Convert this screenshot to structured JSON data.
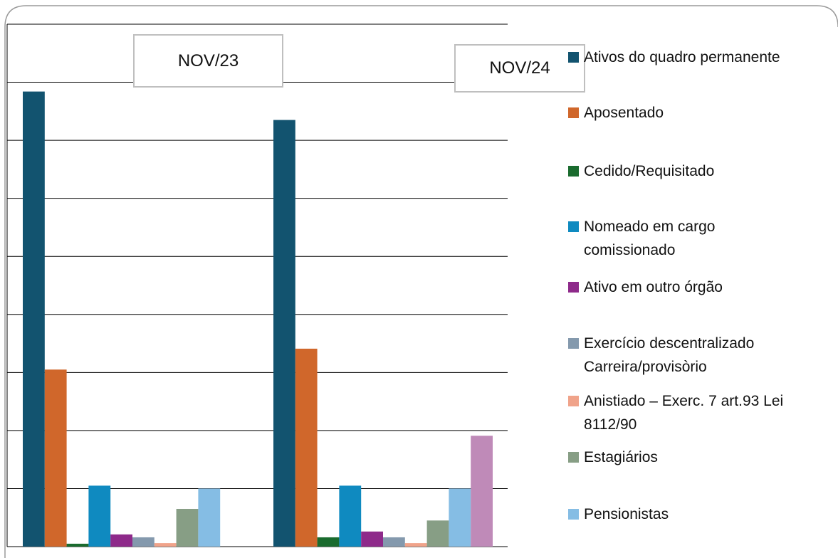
{
  "chart_data": {
    "type": "bar",
    "categories": [
      "NOV/23",
      "NOV/24"
    ],
    "series": [
      {
        "name": "Ativos do quadro permanente",
        "color": "#12536f",
        "values": [
          7.84,
          7.35
        ]
      },
      {
        "name": "Aposentado",
        "color": "#d0672b",
        "values": [
          3.05,
          3.41
        ]
      },
      {
        "name": "Cedido/Requisitado",
        "color": "#1a6b2e",
        "values": [
          0.05,
          0.16
        ]
      },
      {
        "name": "Nomeado em cargo comissionado",
        "color": "#0f8ac0",
        "values": [
          1.05,
          1.05
        ]
      },
      {
        "name": "Ativo em outro órgão",
        "color": "#8e2a8a",
        "values": [
          0.21,
          0.26
        ]
      },
      {
        "name": "Exercício descentralizado Carreira/provisòrio",
        "color": "#8499ad",
        "values": [
          0.16,
          0.16
        ]
      },
      {
        "name": "Anistiado – Exerc. 7  art.93 Lei 8112/90",
        "color": "#f0a38a",
        "values": [
          0.06,
          0.06
        ]
      },
      {
        "name": "Estagiários",
        "color": "#879e85",
        "values": [
          0.65,
          0.45
        ]
      },
      {
        "name": "Pensionistas",
        "color": "#85bde4",
        "values": [
          1.0,
          1.0
        ]
      },
      {
        "color": "#bf8ab8",
        "values": [
          null,
          1.91
        ]
      }
    ],
    "ylim": [
      0,
      9
    ],
    "yticks": [
      0,
      1,
      2,
      3,
      4,
      5,
      6,
      7,
      8,
      9
    ],
    "grid": true
  }
}
